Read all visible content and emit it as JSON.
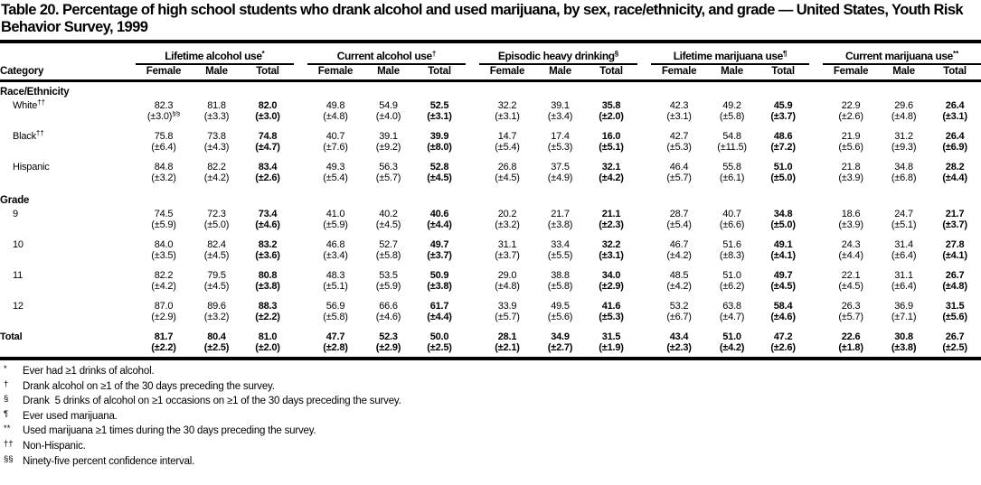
{
  "title": "Table 20. Percentage of high school students who drank alcohol and used marijuana, by sex, race/ethnicity, and grade — United States, Youth Risk Behavior Survey, 1999",
  "table": {
    "category_header": "Category",
    "sub_headers": [
      "Female",
      "Male",
      "Total"
    ],
    "groups": [
      {
        "label": "Lifetime alcohol use",
        "marker": "*"
      },
      {
        "label": "Current alcohol use",
        "marker": "†"
      },
      {
        "label": "Episodic heavy drinking",
        "marker": "§"
      },
      {
        "label": "Lifetime marijuana use",
        "marker": "¶"
      },
      {
        "label": "Current marijuana use",
        "marker": "**"
      }
    ],
    "sections": [
      {
        "label": "Race/Ethnicity",
        "rows": [
          {
            "label": "White",
            "marker": "††",
            "ci0_marker": "§§",
            "values": [
              "82.3",
              "81.8",
              "82.0",
              "49.8",
              "54.9",
              "52.5",
              "32.2",
              "39.1",
              "35.8",
              "42.3",
              "49.2",
              "45.9",
              "22.9",
              "29.6",
              "26.4"
            ],
            "ci": [
              "(±3.0)",
              "(±3.3)",
              "(±3.0)",
              "(±4.8)",
              "(±4.0)",
              "(±3.1)",
              "(±3.1)",
              "(±3.4)",
              "(±2.0)",
              "(±3.1)",
              "(±5.8)",
              "(±3.7)",
              "(±2.6)",
              "(±4.8)",
              "(±3.1)"
            ]
          },
          {
            "label": "Black",
            "marker": "††",
            "values": [
              "75.8",
              "73.8",
              "74.8",
              "40.7",
              "39.1",
              "39.9",
              "14.7",
              "17.4",
              "16.0",
              "42.7",
              "54.8",
              "48.6",
              "21.9",
              "31.2",
              "26.4"
            ],
            "ci": [
              "(±6.4)",
              "(±4.3)",
              "(±4.7)",
              "(±7.6)",
              "(±9.2)",
              "(±8.0)",
              "(±5.4)",
              "(±5.3)",
              "(±5.1)",
              "(±5.3)",
              "(±11.5)",
              "(±7.2)",
              "(±5.6)",
              "(±9.3)",
              "(±6.9)"
            ]
          },
          {
            "label": "Hispanic",
            "values": [
              "84.8",
              "82.2",
              "83.4",
              "49.3",
              "56.3",
              "52.8",
              "26.8",
              "37.5",
              "32.1",
              "46.4",
              "55.8",
              "51.0",
              "21.8",
              "34.8",
              "28.2"
            ],
            "ci": [
              "(±3.2)",
              "(±4.2)",
              "(±2.6)",
              "(±5.4)",
              "(±5.7)",
              "(±4.5)",
              "(±4.5)",
              "(±4.9)",
              "(±4.2)",
              "(±5.7)",
              "(±6.1)",
              "(±5.0)",
              "(±3.9)",
              "(±6.8)",
              "(±4.4)"
            ]
          }
        ]
      },
      {
        "label": "Grade",
        "rows": [
          {
            "label": "9",
            "values": [
              "74.5",
              "72.3",
              "73.4",
              "41.0",
              "40.2",
              "40.6",
              "20.2",
              "21.7",
              "21.1",
              "28.7",
              "40.7",
              "34.8",
              "18.6",
              "24.7",
              "21.7"
            ],
            "ci": [
              "(±5.9)",
              "(±5.0)",
              "(±4.6)",
              "(±5.9)",
              "(±4.5)",
              "(±4.4)",
              "(±3.2)",
              "(±3.8)",
              "(±2.3)",
              "(±5.4)",
              "(±6.6)",
              "(±5.0)",
              "(±3.9)",
              "(±5.1)",
              "(±3.7)"
            ]
          },
          {
            "label": "10",
            "values": [
              "84.0",
              "82.4",
              "83.2",
              "46.8",
              "52.7",
              "49.7",
              "31.1",
              "33.4",
              "32.2",
              "46.7",
              "51.6",
              "49.1",
              "24.3",
              "31.4",
              "27.8"
            ],
            "ci": [
              "(±3.5)",
              "(±4.5)",
              "(±3.6)",
              "(±3.4)",
              "(±5.8)",
              "(±3.7)",
              "(±3.7)",
              "(±5.5)",
              "(±3.1)",
              "(±4.2)",
              "(±8.3)",
              "(±4.1)",
              "(±4.4)",
              "(±6.4)",
              "(±4.1)"
            ]
          },
          {
            "label": "11",
            "values": [
              "82.2",
              "79.5",
              "80.8",
              "48.3",
              "53.5",
              "50.9",
              "29.0",
              "38.8",
              "34.0",
              "48.5",
              "51.0",
              "49.7",
              "22.1",
              "31.1",
              "26.7"
            ],
            "ci": [
              "(±4.2)",
              "(±4.5)",
              "(±3.8)",
              "(±5.1)",
              "(±5.9)",
              "(±3.8)",
              "(±4.8)",
              "(±5.8)",
              "(±2.9)",
              "(±4.2)",
              "(±6.2)",
              "(±4.5)",
              "(±4.5)",
              "(±6.4)",
              "(±4.8)"
            ]
          },
          {
            "label": "12",
            "values": [
              "87.0",
              "89.6",
              "88.3",
              "56.9",
              "66.6",
              "61.7",
              "33.9",
              "49.5",
              "41.6",
              "53.2",
              "63.8",
              "58.4",
              "26.3",
              "36.9",
              "31.5"
            ],
            "ci": [
              "(±2.9)",
              "(±3.2)",
              "(±2.2)",
              "(±5.8)",
              "(±4.6)",
              "(±4.4)",
              "(±5.7)",
              "(±5.6)",
              "(±5.3)",
              "(±6.7)",
              "(±4.7)",
              "(±4.6)",
              "(±5.7)",
              "(±7.1)",
              "(±5.6)"
            ]
          }
        ]
      }
    ],
    "total_row": {
      "label": "Total",
      "values": [
        "81.7",
        "80.4",
        "81.0",
        "47.7",
        "52.3",
        "50.0",
        "28.1",
        "34.9",
        "31.5",
        "43.4",
        "51.0",
        "47.2",
        "22.6",
        "30.8",
        "26.7"
      ],
      "ci": [
        "(±2.2)",
        "(±2.5)",
        "(±2.0)",
        "(±2.8)",
        "(±2.9)",
        "(±2.5)",
        "(±2.1)",
        "(±2.7)",
        "(±1.9)",
        "(±2.3)",
        "(±4.2)",
        "(±2.6)",
        "(±1.8)",
        "(±3.8)",
        "(±2.5)"
      ]
    }
  },
  "footnotes": [
    {
      "marker": "*",
      "text": "Ever had ≥1 drinks of alcohol."
    },
    {
      "marker": "†",
      "text": "Drank alcohol on ≥1 of the 30 days preceding the survey."
    },
    {
      "marker": "§",
      "text": "Drank  5 drinks of alcohol on ≥1 occasions on ≥1 of the 30 days preceding the survey."
    },
    {
      "marker": "¶",
      "text": "Ever used marijuana."
    },
    {
      "marker": "**",
      "text": "Used marijuana ≥1 times during the 30 days preceding the survey."
    },
    {
      "marker": "††",
      "text": "Non-Hispanic."
    },
    {
      "marker": "§§",
      "text": "Ninety-five percent confidence interval."
    }
  ]
}
